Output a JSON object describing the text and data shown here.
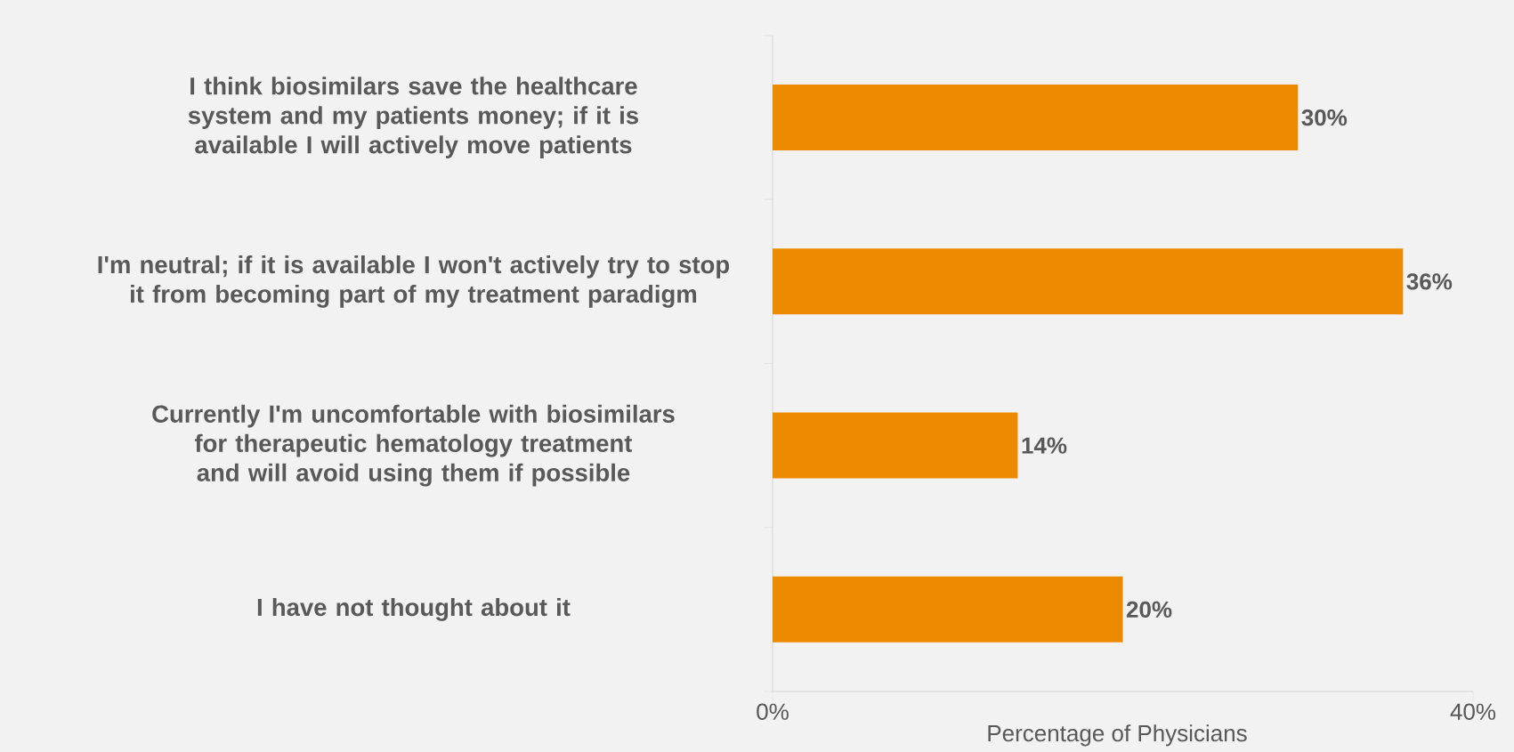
{
  "chart_data": {
    "type": "bar",
    "orientation": "horizontal",
    "categories": [
      "I think biosimilars save the healthcare system and my patients money; if it is available I will actively move patients",
      "I'm neutral; if it is available I won't actively try to stop it from becoming part of my treatment paradigm",
      "Currently I'm uncomfortable with biosimilars for therapeutic hematology treatment and will avoid using them if possible",
      "I have not thought about it"
    ],
    "values": [
      30,
      36,
      14,
      20
    ],
    "value_labels": [
      "30%",
      "36%",
      "14%",
      "20%"
    ],
    "color": "#ed8b00",
    "xlabel": "Percentage of Physicians",
    "xlim": [
      0,
      40
    ],
    "xticks": [
      {
        "value": 0,
        "label": "0%"
      },
      {
        "value": 40,
        "label": "40%"
      }
    ],
    "grid": false
  }
}
